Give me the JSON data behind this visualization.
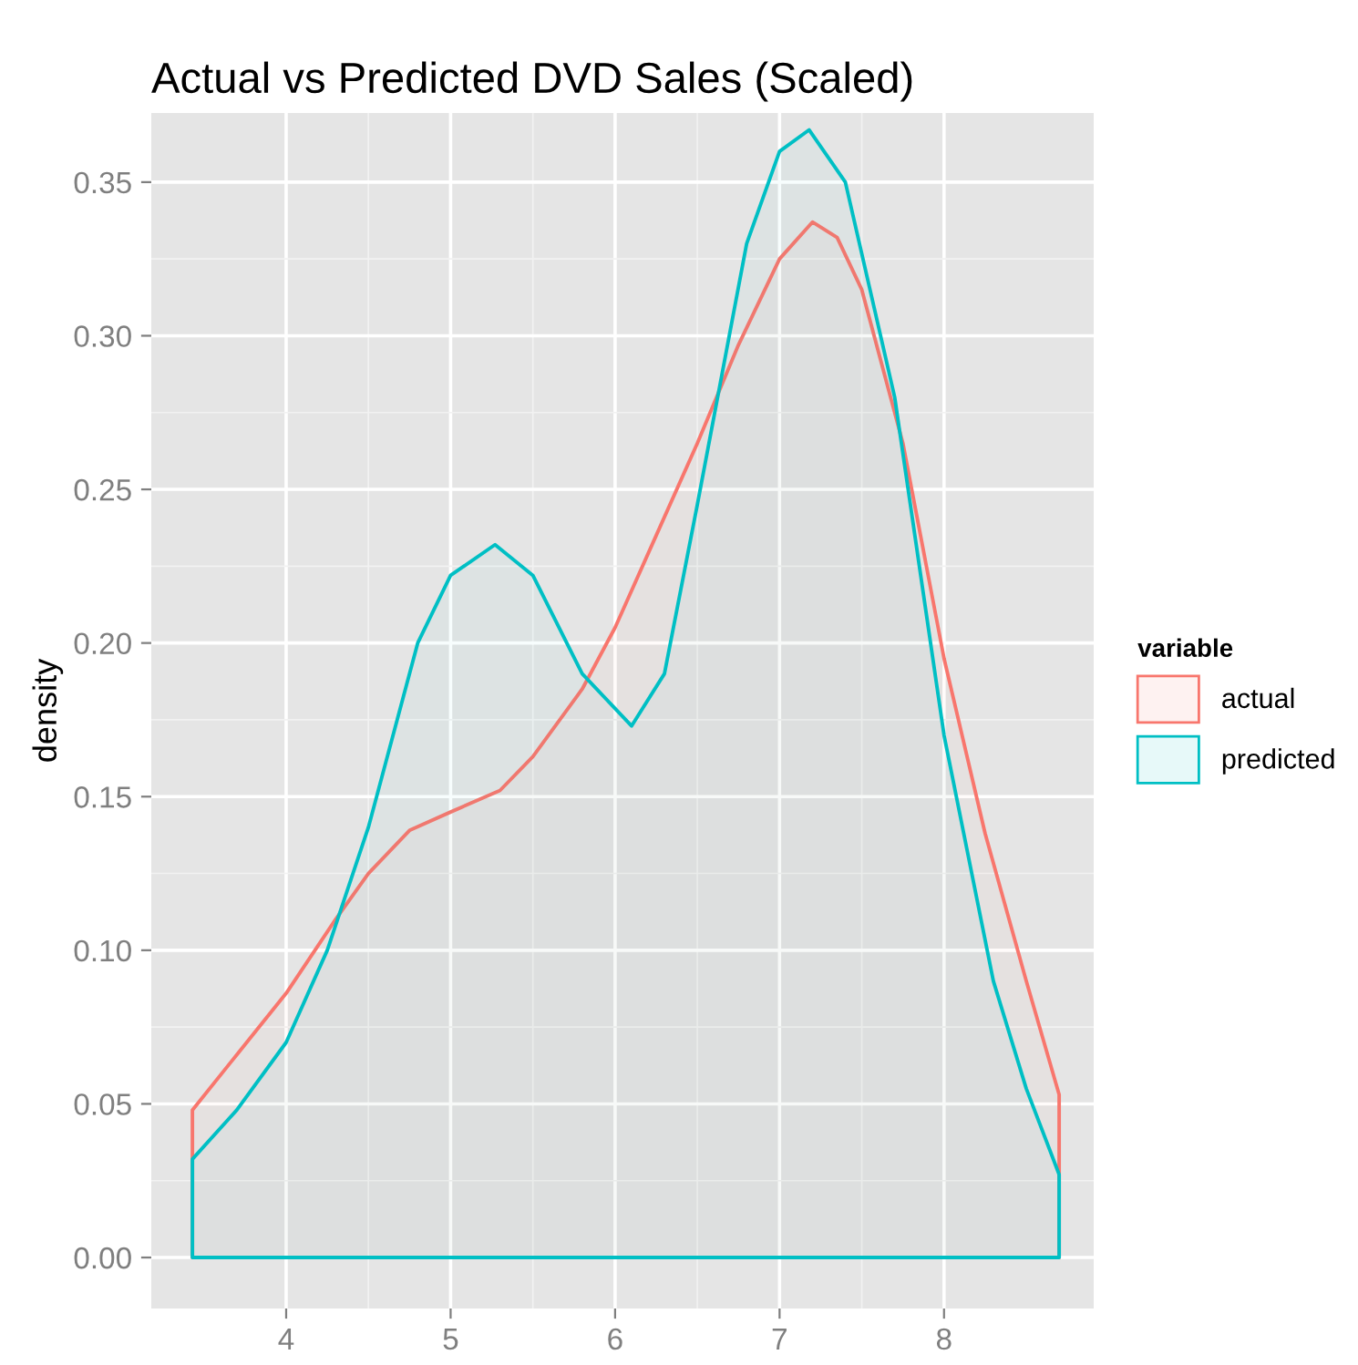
{
  "chart_data": {
    "type": "area",
    "title": "Actual vs Predicted DVD Sales (Scaled)",
    "ylabel": "density",
    "legend_title": "variable",
    "legend": "right",
    "grid": true,
    "xlim": [
      3.18,
      8.91
    ],
    "ylim": [
      -0.0166,
      0.3725
    ],
    "xticks": [
      4,
      5,
      6,
      7,
      8
    ],
    "yticks": [
      {
        "value": 0,
        "label": "0.00"
      },
      {
        "value": 0.05,
        "label": "0.05"
      },
      {
        "value": 0.1,
        "label": "0.10"
      },
      {
        "value": 0.15,
        "label": "0.15"
      },
      {
        "value": 0.2,
        "label": "0.20"
      },
      {
        "value": 0.25,
        "label": "0.25"
      },
      {
        "value": 0.3,
        "label": "0.30"
      },
      {
        "value": 0.35,
        "label": "0.35"
      }
    ],
    "series": [
      {
        "name": "actual",
        "color": "#f8766d",
        "x": [
          3.43,
          3.7,
          4.0,
          4.3,
          4.5,
          4.75,
          5.0,
          5.3,
          5.5,
          5.8,
          6.0,
          6.25,
          6.5,
          6.75,
          7.0,
          7.2,
          7.35,
          7.5,
          7.75,
          8.0,
          8.25,
          8.5,
          8.7
        ],
        "values": [
          0.048,
          0.066,
          0.086,
          0.11,
          0.125,
          0.139,
          0.145,
          0.152,
          0.163,
          0.185,
          0.205,
          0.235,
          0.265,
          0.297,
          0.325,
          0.337,
          0.332,
          0.315,
          0.265,
          0.195,
          0.138,
          0.09,
          0.053
        ]
      },
      {
        "name": "predicted",
        "color": "#00bfc4",
        "x": [
          3.43,
          3.7,
          4.0,
          4.25,
          4.5,
          4.8,
          5.0,
          5.27,
          5.5,
          5.8,
          6.1,
          6.3,
          6.5,
          6.8,
          7.0,
          7.18,
          7.4,
          7.7,
          8.0,
          8.3,
          8.5,
          8.7
        ],
        "values": [
          0.032,
          0.048,
          0.07,
          0.1,
          0.14,
          0.2,
          0.222,
          0.232,
          0.222,
          0.19,
          0.173,
          0.19,
          0.245,
          0.33,
          0.36,
          0.367,
          0.35,
          0.28,
          0.17,
          0.09,
          0.055,
          0.027
        ]
      }
    ]
  }
}
